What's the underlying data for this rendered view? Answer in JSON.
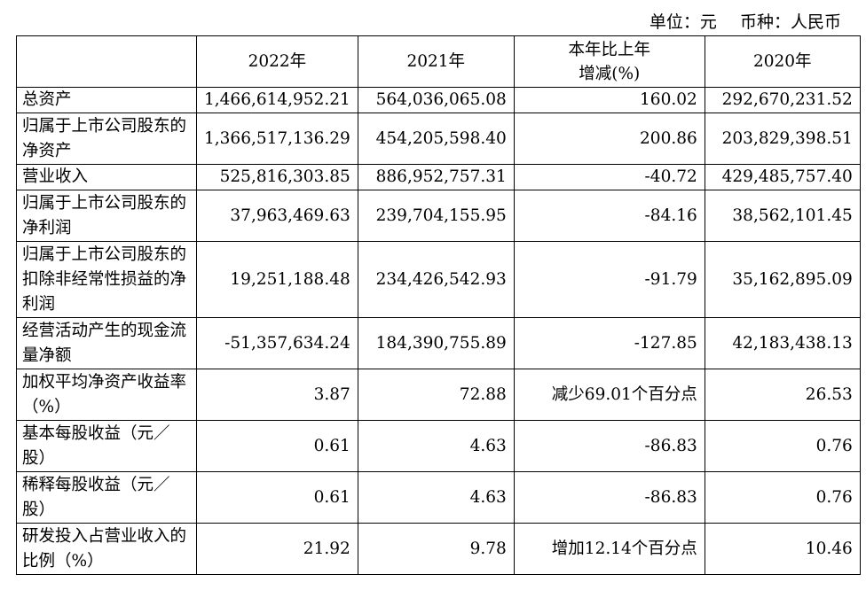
{
  "header_note": {
    "unit": "单位：元",
    "currency": "币种：人民币"
  },
  "table": {
    "columns": [
      "",
      "2022年",
      "2021年",
      "本年比上年\n增减(%)",
      "2020年"
    ],
    "rows": [
      {
        "label": "总资产",
        "v2022": "1,466,614,952.21",
        "v2021": "564,036,065.08",
        "change": "160.02",
        "v2020": "292,670,231.52"
      },
      {
        "label": "归属于上市公司股东的净资产",
        "v2022": "1,366,517,136.29",
        "v2021": "454,205,598.40",
        "change": "200.86",
        "v2020": "203,829,398.51"
      },
      {
        "label": "营业收入",
        "v2022": "525,816,303.85",
        "v2021": "886,952,757.31",
        "change": "-40.72",
        "v2020": "429,485,757.40"
      },
      {
        "label": "归属于上市公司股东的净利润",
        "v2022": "37,963,469.63",
        "v2021": "239,704,155.95",
        "change": "-84.16",
        "v2020": "38,562,101.45"
      },
      {
        "label": "归属于上市公司股东的扣除非经常性损益的净利润",
        "v2022": "19,251,188.48",
        "v2021": "234,426,542.93",
        "change": "-91.79",
        "v2020": "35,162,895.09"
      },
      {
        "label": "经营活动产生的现金流量净额",
        "v2022": "-51,357,634.24",
        "v2021": "184,390,755.89",
        "change": "-127.85",
        "v2020": "42,183,438.13"
      },
      {
        "label": "加权平均净资产收益率（%）",
        "v2022": "3.87",
        "v2021": "72.88",
        "change": "减少69.01个百分点",
        "v2020": "26.53"
      },
      {
        "label": "基本每股收益（元／股）",
        "v2022": "0.61",
        "v2021": "4.63",
        "change": "-86.83",
        "v2020": "0.76"
      },
      {
        "label": "稀释每股收益（元／股）",
        "v2022": "0.61",
        "v2021": "4.63",
        "change": "-86.83",
        "v2020": "0.76"
      },
      {
        "label": "研发投入占营业收入的比例（%）",
        "v2022": "21.92",
        "v2021": "9.78",
        "change": "增加12.14个百分点",
        "v2020": "10.46"
      }
    ]
  }
}
